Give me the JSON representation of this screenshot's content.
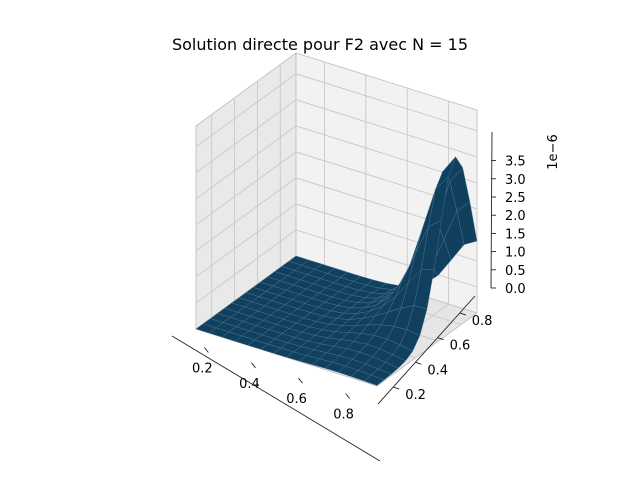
{
  "chart_data": {
    "type": "surface3d",
    "title": "Solution directe pour F2 avec N = 15",
    "xlabel": "",
    "ylabel": "",
    "zlabel": "",
    "z_offset_label": "1e−6",
    "xlim": [
      0.0625,
      0.9375
    ],
    "ylim": [
      0.0625,
      0.9375
    ],
    "zlim": [
      0,
      3.9
    ],
    "x_ticks": [
      "0.2",
      "0.4",
      "0.6",
      "0.8"
    ],
    "y_ticks": [
      "0.2",
      "0.4",
      "0.6",
      "0.8"
    ],
    "z_ticks": [
      "0.0",
      "0.5",
      "1.0",
      "1.5",
      "2.0",
      "2.5",
      "3.0",
      "3.5"
    ],
    "grid": true,
    "surface_color": "#113f5e",
    "grid_n": 15,
    "peak": {
      "x": 0.9375,
      "y": 0.75,
      "z": 3.2
    }
  }
}
